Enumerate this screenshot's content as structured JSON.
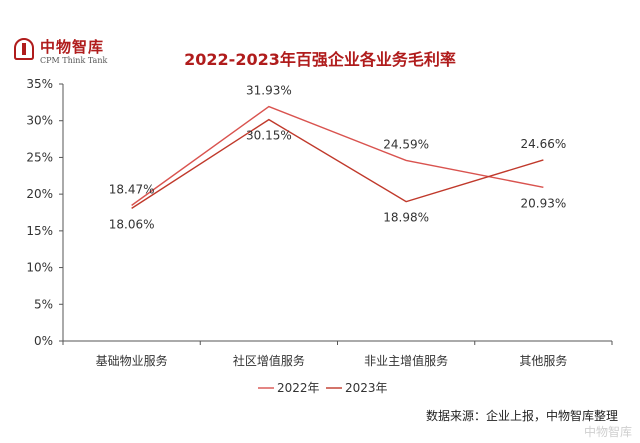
{
  "logo": {
    "name_cn": "中物智库",
    "name_en": "CPM Think Tank"
  },
  "source": "数据来源：企业上报，中物智库整理",
  "watermark": "中物智库",
  "chart_data": {
    "type": "line",
    "title": "2022-2023年百强企业各业务毛利率",
    "xlabel": "",
    "ylabel": "",
    "categories": [
      "基础物业服务",
      "社区增值服务",
      "非业主增值服务",
      "其他服务"
    ],
    "ylim": [
      0,
      35
    ],
    "yticks": [
      "0%",
      "5%",
      "10%",
      "15%",
      "20%",
      "25%",
      "30%",
      "35%"
    ],
    "grid": false,
    "legend_position": "bottom",
    "series": [
      {
        "name": "2022年",
        "color": "#d9534f",
        "values": [
          18.47,
          31.93,
          24.59,
          20.93
        ],
        "labels": [
          "18.47%",
          "31.93%",
          "24.59%",
          "20.93%"
        ]
      },
      {
        "name": "2023年",
        "color": "#c0392b",
        "values": [
          18.06,
          30.15,
          18.98,
          24.66
        ],
        "labels": [
          "18.06%",
          "30.15%",
          "18.98%",
          "24.66%"
        ]
      }
    ]
  }
}
